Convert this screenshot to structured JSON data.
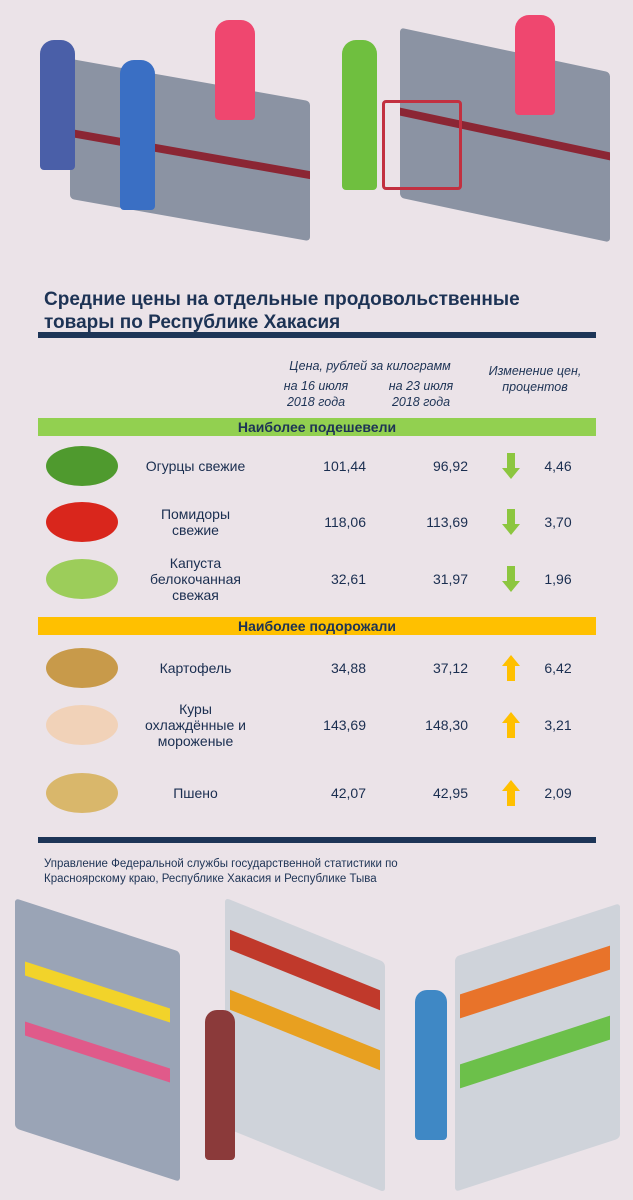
{
  "title": "Средние цены на отдельные продовольственные товары по Республике Хакасия",
  "headers": {
    "price": "Цена, рублей за килограмм",
    "date1": "на 16 июля 2018 года",
    "date2": "на 23 июля 2018 года",
    "change": "Изменение цен, процентов"
  },
  "sections": [
    {
      "label": "Наиболее подешевели",
      "color": "#92d050",
      "direction": "down",
      "items": [
        {
          "name": "Огурцы свежие",
          "p1": "101,44",
          "p2": "96,92",
          "change": "4,46",
          "icon": "cucumber-icon"
        },
        {
          "name": "Помидоры свежие",
          "p1": "118,06",
          "p2": "113,69",
          "change": "3,70",
          "icon": "tomato-icon"
        },
        {
          "name": "Капуста белокочанная свежая",
          "p1": "32,61",
          "p2": "31,97",
          "change": "1,96",
          "icon": "cabbage-icon"
        }
      ]
    },
    {
      "label": "Наиболее подорожали",
      "color": "#ffc000",
      "direction": "up",
      "items": [
        {
          "name": "Картофель",
          "p1": "34,88",
          "p2": "37,12",
          "change": "6,42",
          "icon": "potato-icon"
        },
        {
          "name": "Куры охлаждённые и мороженые",
          "p1": "143,69",
          "p2": "148,30",
          "change": "3,21",
          "icon": "chicken-icon"
        },
        {
          "name": "Пшено",
          "p1": "42,07",
          "p2": "42,95",
          "change": "2,09",
          "icon": "millet-icon"
        }
      ]
    }
  ],
  "source": "Управление Федеральной службы государственной статистики по Красноярскому краю, Республике Хакасия и Республике Тыва"
}
